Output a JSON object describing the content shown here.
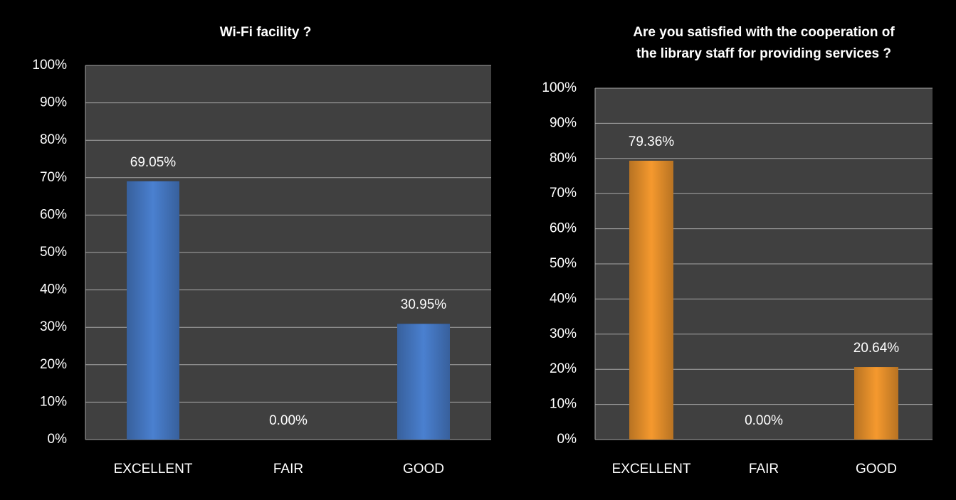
{
  "chart_data": [
    {
      "type": "bar",
      "title": [
        "Wi-Fi facility ?"
      ],
      "categories": [
        "EXCELLENT",
        "FAIR",
        "GOOD"
      ],
      "values": [
        69.05,
        0,
        30.95
      ],
      "value_labels": [
        "69.05%",
        "0.00%",
        "30.95%"
      ],
      "color": "#4a80d0",
      "ylim": [
        0,
        100
      ],
      "yticks": [
        {
          "value": 0,
          "label": "0%"
        },
        {
          "value": 10,
          "label": "10%"
        },
        {
          "value": 20,
          "label": "20%"
        },
        {
          "value": 30,
          "label": "30%"
        },
        {
          "value": 40,
          "label": "40%"
        },
        {
          "value": 50,
          "label": "50%"
        },
        {
          "value": 60,
          "label": "60%"
        },
        {
          "value": 70,
          "label": "70%"
        },
        {
          "value": 80,
          "label": "80%"
        },
        {
          "value": 90,
          "label": "90%"
        },
        {
          "value": 100,
          "label": "100%"
        }
      ],
      "grid": true
    },
    {
      "type": "bar",
      "title": [
        "Are you satisfied with the cooperation of",
        "the library staff for providing services ?"
      ],
      "categories": [
        "EXCELLENT",
        "FAIR",
        "GOOD"
      ],
      "values": [
        79.36,
        0,
        20.64
      ],
      "value_labels": [
        "79.36%",
        "0.00%",
        "20.64%"
      ],
      "color": "#f5992e",
      "ylim": [
        0,
        100
      ],
      "yticks": [
        {
          "value": 0,
          "label": "0%"
        },
        {
          "value": 10,
          "label": "10%"
        },
        {
          "value": 20,
          "label": "20%"
        },
        {
          "value": 30,
          "label": "30%"
        },
        {
          "value": 40,
          "label": "40%"
        },
        {
          "value": 50,
          "label": "50%"
        },
        {
          "value": 60,
          "label": "60%"
        },
        {
          "value": 70,
          "label": "70%"
        },
        {
          "value": 80,
          "label": "80%"
        },
        {
          "value": 90,
          "label": "90%"
        },
        {
          "value": 100,
          "label": "100%"
        }
      ],
      "grid": true
    }
  ]
}
